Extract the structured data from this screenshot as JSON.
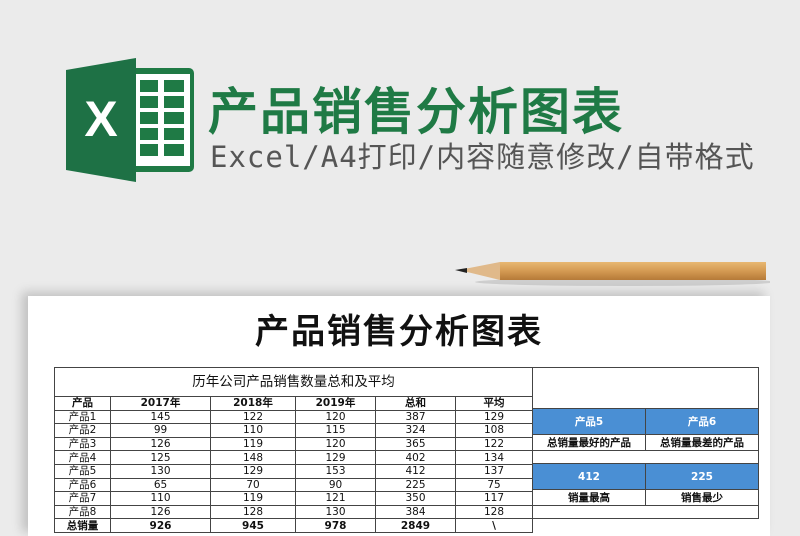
{
  "header": {
    "title": "产品销售分析图表",
    "subtitle": "Excel/A4打印/内容随意修改/自带格式",
    "logo_letter": "X",
    "brand_color": "#1f7a45"
  },
  "sheet": {
    "title": "产品销售分析图表",
    "table_title": "历年公司产品销售数量总和及平均",
    "columns": [
      "产品",
      "2017年",
      "2018年",
      "2019年",
      "总和",
      "平均"
    ],
    "rows": [
      [
        "产品1",
        "145",
        "122",
        "120",
        "387",
        "129"
      ],
      [
        "产品2",
        "99",
        "110",
        "115",
        "324",
        "108"
      ],
      [
        "产品3",
        "126",
        "119",
        "120",
        "365",
        "122"
      ],
      [
        "产品4",
        "125",
        "148",
        "129",
        "402",
        "134"
      ],
      [
        "产品5",
        "130",
        "129",
        "153",
        "412",
        "137"
      ],
      [
        "产品6",
        "65",
        "70",
        "90",
        "225",
        "75"
      ],
      [
        "产品7",
        "110",
        "119",
        "121",
        "350",
        "117"
      ],
      [
        "产品8",
        "126",
        "128",
        "130",
        "384",
        "128"
      ],
      [
        "总销量",
        "926",
        "945",
        "978",
        "2849",
        "\\"
      ]
    ],
    "summary": {
      "best_product": "产品5",
      "worst_product": "产品6",
      "best_label": "总销量最好的产品",
      "worst_label": "总销量最差的产品",
      "max_value": "412",
      "min_value": "225",
      "max_label": "销量最高",
      "min_label": "销售最少",
      "accent_color": "#4a8fd4"
    }
  }
}
